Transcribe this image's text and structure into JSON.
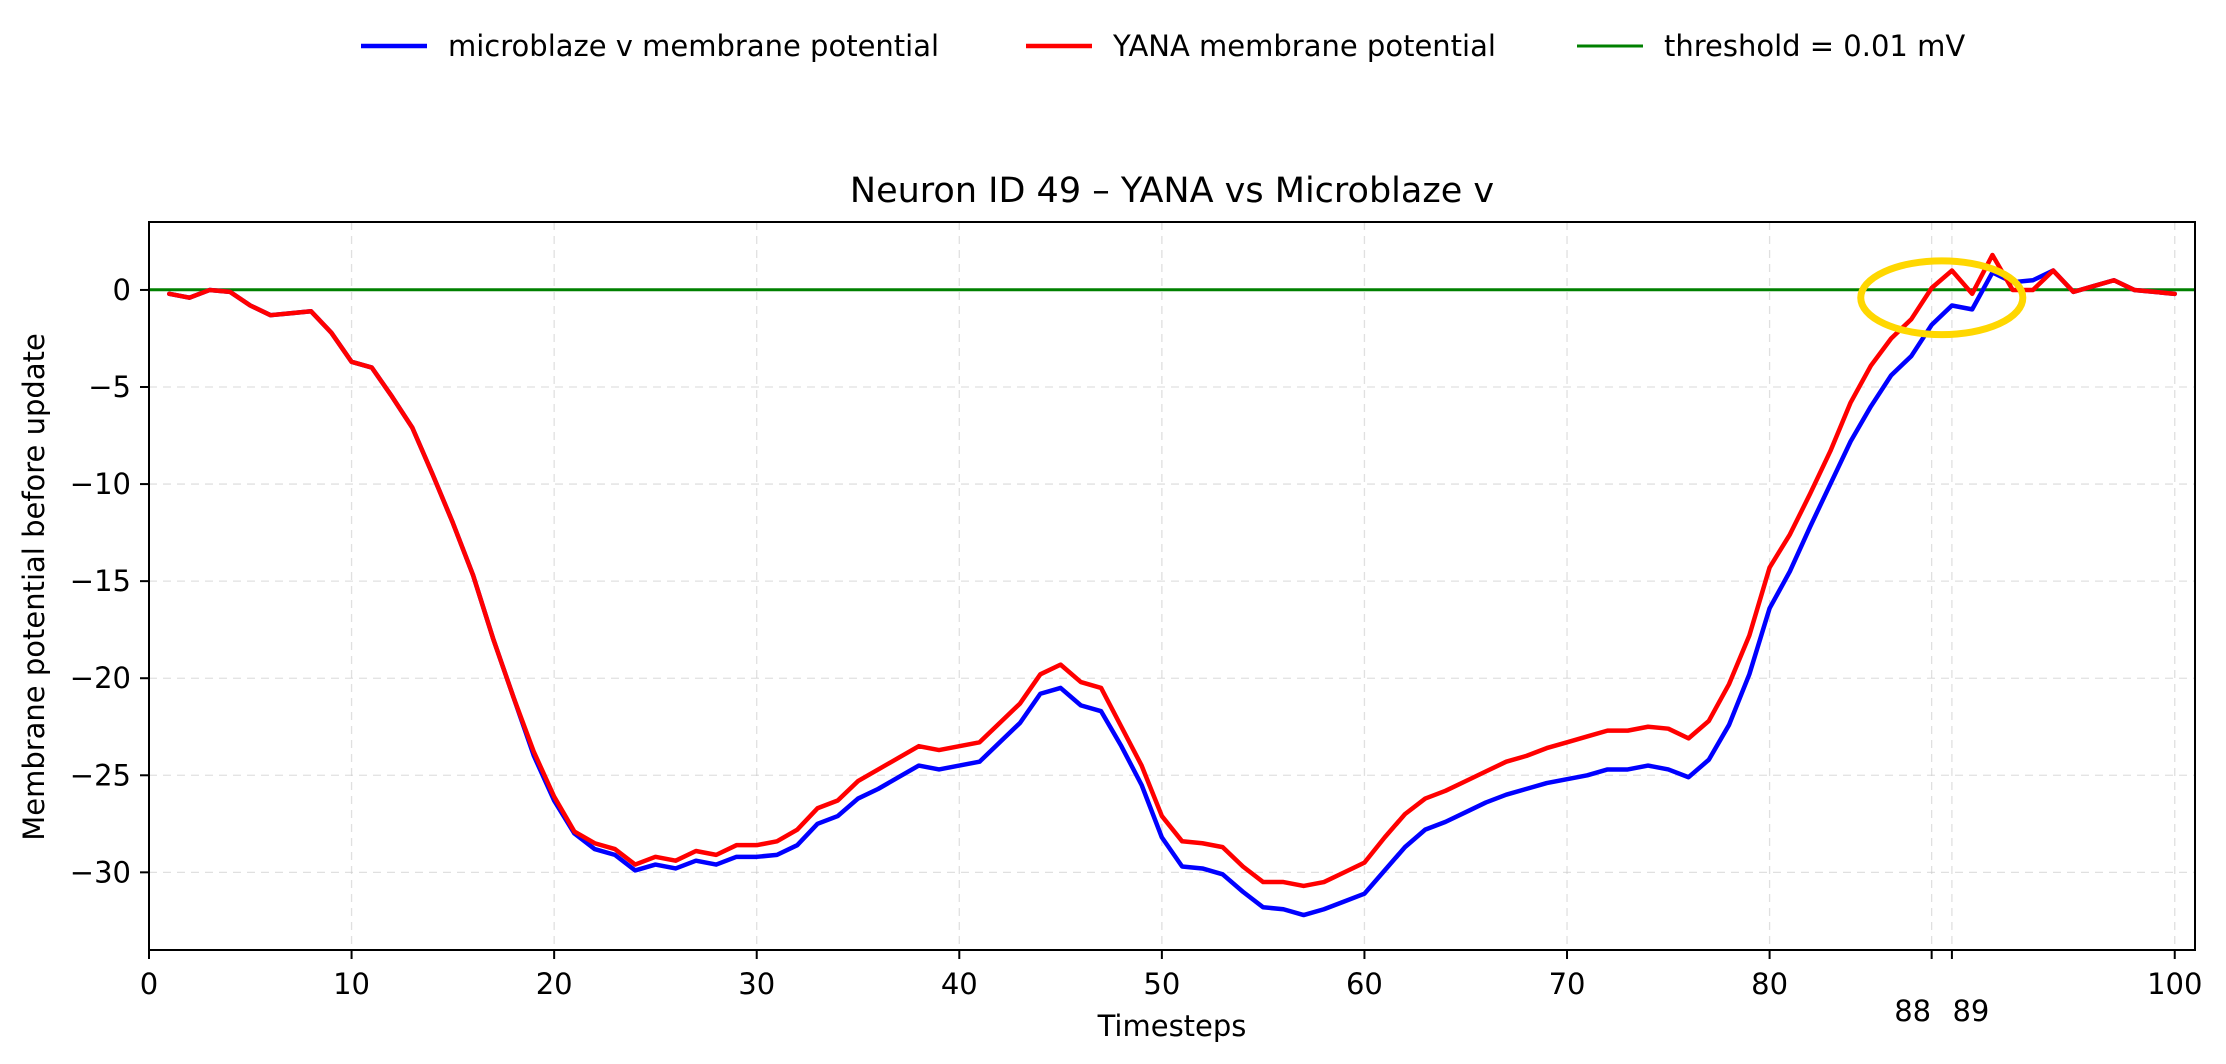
{
  "chart_data": {
    "type": "line",
    "title": "Neuron ID 49 – YANA vs Microblaze v",
    "xlabel": "Timesteps",
    "ylabel": "Membrane potential before update",
    "xlim": [
      0,
      101
    ],
    "ylim": [
      -34,
      3.5
    ],
    "grid": true,
    "legend_position": "top-center",
    "xticks": [
      0,
      10,
      20,
      30,
      40,
      50,
      60,
      70,
      80,
      100
    ],
    "yticks": [
      0,
      -5,
      -10,
      -15,
      -20,
      -25,
      -30
    ],
    "extra_xticks": [
      {
        "value": 88,
        "label": "88"
      },
      {
        "value": 89,
        "label": "89"
      }
    ],
    "x": [
      1,
      2,
      3,
      4,
      5,
      6,
      7,
      8,
      9,
      10,
      11,
      12,
      13,
      14,
      15,
      16,
      17,
      18,
      19,
      20,
      21,
      22,
      23,
      24,
      25,
      26,
      27,
      28,
      29,
      30,
      31,
      32,
      33,
      34,
      35,
      36,
      37,
      38,
      39,
      40,
      41,
      42,
      43,
      44,
      45,
      46,
      47,
      48,
      49,
      50,
      51,
      52,
      53,
      54,
      55,
      56,
      57,
      58,
      59,
      60,
      61,
      62,
      63,
      64,
      65,
      66,
      67,
      68,
      69,
      70,
      71,
      72,
      73,
      74,
      75,
      76,
      77,
      78,
      79,
      80,
      81,
      82,
      83,
      84,
      85,
      86,
      87,
      88,
      89,
      90,
      91,
      92,
      93,
      94,
      95,
      96,
      97,
      98,
      99,
      100
    ],
    "series": [
      {
        "name": "microblaze v membrane potential",
        "color": "#0000ff",
        "values": [
          -0.2,
          -0.4,
          0.0,
          -0.1,
          -0.8,
          -1.3,
          -1.2,
          -1.1,
          -2.2,
          -3.7,
          -4.0,
          -5.5,
          -7.1,
          -9.5,
          -12.0,
          -14.7,
          -18.0,
          -21.0,
          -24.0,
          -26.3,
          -28.0,
          -28.8,
          -29.1,
          -29.9,
          -29.6,
          -29.8,
          -29.4,
          -29.6,
          -29.2,
          -29.2,
          -29.1,
          -28.6,
          -27.5,
          -27.1,
          -26.2,
          -25.7,
          -25.1,
          -24.5,
          -24.7,
          -24.5,
          -24.3,
          -23.3,
          -22.3,
          -20.8,
          -20.5,
          -21.4,
          -21.7,
          -23.5,
          -25.5,
          -28.2,
          -29.7,
          -29.8,
          -30.1,
          -31.0,
          -31.8,
          -31.9,
          -32.2,
          -31.9,
          -31.5,
          -31.1,
          -29.9,
          -28.7,
          -27.8,
          -27.4,
          -26.9,
          -26.4,
          -26.0,
          -25.7,
          -25.4,
          -25.2,
          -25.0,
          -24.7,
          -24.7,
          -24.5,
          -24.7,
          -25.1,
          -24.2,
          -22.4,
          -19.8,
          -16.4,
          -14.5,
          -12.2,
          -10.0,
          -7.8,
          -6.0,
          -4.4,
          -3.4,
          -1.8,
          -0.8,
          -1.0,
          0.9,
          0.4,
          0.5,
          1.0,
          -0.1,
          0.2,
          0.5,
          0.0,
          -0.1,
          -0.2
        ]
      },
      {
        "name": "YANA membrane potential",
        "color": "#ff0000",
        "values": [
          -0.2,
          -0.4,
          0.0,
          -0.1,
          -0.8,
          -1.3,
          -1.2,
          -1.1,
          -2.2,
          -3.7,
          -4.0,
          -5.5,
          -7.1,
          -9.5,
          -12.0,
          -14.7,
          -18.0,
          -21.0,
          -23.8,
          -26.1,
          -27.9,
          -28.5,
          -28.8,
          -29.6,
          -29.2,
          -29.4,
          -28.9,
          -29.1,
          -28.6,
          -28.6,
          -28.4,
          -27.8,
          -26.7,
          -26.3,
          -25.3,
          -24.7,
          -24.1,
          -23.5,
          -23.7,
          -23.5,
          -23.3,
          -22.3,
          -21.3,
          -19.8,
          -19.3,
          -20.2,
          -20.5,
          -22.5,
          -24.5,
          -27.1,
          -28.4,
          -28.5,
          -28.7,
          -29.7,
          -30.5,
          -30.5,
          -30.7,
          -30.5,
          -30.0,
          -29.5,
          -28.2,
          -27.0,
          -26.2,
          -25.8,
          -25.3,
          -24.8,
          -24.3,
          -24.0,
          -23.6,
          -23.3,
          -23.0,
          -22.7,
          -22.7,
          -22.5,
          -22.6,
          -23.1,
          -22.2,
          -20.3,
          -17.8,
          -14.3,
          -12.6,
          -10.5,
          -8.3,
          -5.8,
          -3.9,
          -2.5,
          -1.5,
          0.1,
          1.0,
          -0.2,
          1.8,
          0.0,
          0.0,
          1.0,
          -0.1,
          0.2,
          0.5,
          0.0,
          -0.1,
          -0.2
        ]
      }
    ],
    "threshold": {
      "name": "threshold = 0.01 mV",
      "value": 0.01,
      "color": "#008000"
    },
    "annotation": {
      "shape": "ellipse",
      "color": "#ffd700",
      "x_center": 88.5,
      "y_center": -0.4,
      "x_width": 8.0,
      "y_height": 3.8
    }
  }
}
